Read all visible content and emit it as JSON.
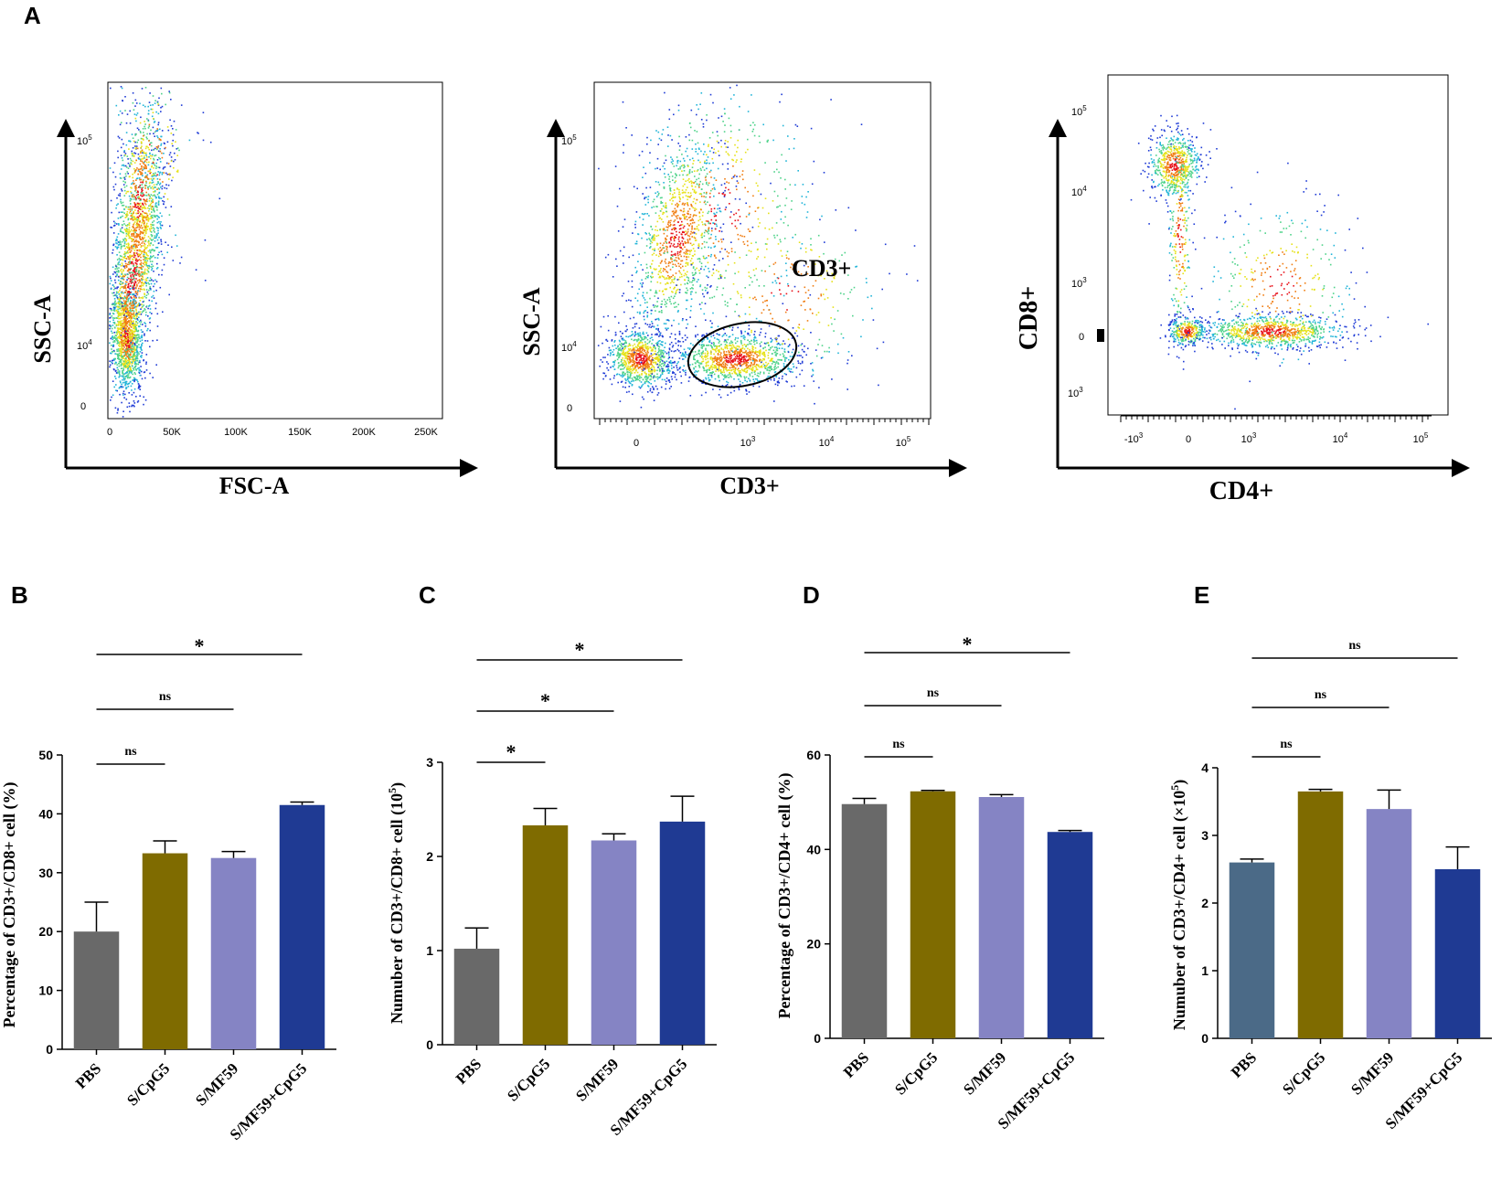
{
  "panels": {
    "A": "A",
    "B": "B",
    "C": "C",
    "D": "D",
    "E": "E"
  },
  "flow": [
    {
      "id": "fsc-ssc",
      "xlabel": "FSC-A",
      "ylabel": "SSC-A",
      "xticks": [
        "0",
        "50K",
        "100K",
        "150K",
        "200K",
        "250K"
      ],
      "yticks": [
        {
          "base": "10",
          "exp": "5"
        },
        {
          "base": "10",
          "exp": "4"
        },
        {
          "base": "0",
          "exp": ""
        }
      ]
    },
    {
      "id": "cd3-ssc",
      "xlabel": "CD3+",
      "ylabel": "SSC-A",
      "gate_label": "CD3+",
      "xticks": [
        {
          "base": "0",
          "exp": ""
        },
        {
          "base": "10",
          "exp": "3"
        },
        {
          "base": "10",
          "exp": "4"
        },
        {
          "base": "10",
          "exp": "5"
        }
      ],
      "yticks": [
        {
          "base": "10",
          "exp": "5"
        },
        {
          "base": "10",
          "exp": "4"
        },
        {
          "base": "0",
          "exp": ""
        }
      ]
    },
    {
      "id": "cd4-cd8",
      "xlabel": "CD4+",
      "ylabel": "CD8+",
      "xticks": [
        {
          "base": "-10",
          "exp": "3"
        },
        {
          "base": "0",
          "exp": ""
        },
        {
          "base": "10",
          "exp": "3"
        },
        {
          "base": "10",
          "exp": "4"
        },
        {
          "base": "10",
          "exp": "5"
        }
      ],
      "yticks": [
        {
          "base": "10",
          "exp": "5"
        },
        {
          "base": "10",
          "exp": "4"
        },
        {
          "base": "10",
          "exp": "3"
        },
        {
          "base": "0",
          "exp": ""
        },
        {
          "base": "10",
          "exp": "3"
        }
      ]
    }
  ],
  "chart_data": [
    {
      "type": "bar",
      "panel": "B",
      "ylabel": "Percentage of CD3+/CD8+ cell (%)",
      "ylim": [
        0,
        50
      ],
      "yticks": [
        0,
        10,
        20,
        30,
        40,
        50
      ],
      "categories": [
        "PBS",
        "S/CpG5",
        "S/MF59",
        "S/MF59+CpG5"
      ],
      "values": [
        20,
        33.3,
        32.5,
        41.5
      ],
      "errors": [
        5,
        2.1,
        1.1,
        0.5
      ],
      "colors": [
        "#696969",
        "#7f6b00",
        "#8584c4",
        "#1f3a93"
      ],
      "significance": [
        {
          "from": 0,
          "to": 1,
          "label": "ns"
        },
        {
          "from": 0,
          "to": 2,
          "label": "ns"
        },
        {
          "from": 0,
          "to": 3,
          "label": "*"
        }
      ]
    },
    {
      "type": "bar",
      "panel": "C",
      "ylabel": "Numuber of CD3+/CD8+ cell (10",
      "ylabel_sup": "5",
      "ylabel_end": ")",
      "ylim": [
        0,
        3
      ],
      "yticks": [
        0,
        1,
        2,
        3
      ],
      "categories": [
        "PBS",
        "S/CpG5",
        "S/MF59",
        "S/MF59+CpG5"
      ],
      "values": [
        1.02,
        2.33,
        2.17,
        2.37
      ],
      "errors": [
        0.22,
        0.18,
        0.07,
        0.27
      ],
      "colors": [
        "#696969",
        "#7f6b00",
        "#8584c4",
        "#1f3a93"
      ],
      "significance": [
        {
          "from": 0,
          "to": 1,
          "label": "*"
        },
        {
          "from": 0,
          "to": 2,
          "label": "*"
        },
        {
          "from": 0,
          "to": 3,
          "label": "*"
        }
      ]
    },
    {
      "type": "bar",
      "panel": "D",
      "ylabel": "Percentage of CD3+/CD4+ cell (%)",
      "ylim": [
        0,
        60
      ],
      "yticks": [
        0,
        20,
        40,
        60
      ],
      "categories": [
        "PBS",
        "S/CpG5",
        "S/MF59",
        "S/MF59+CpG5"
      ],
      "values": [
        49.6,
        52.3,
        51.1,
        43.7
      ],
      "errors": [
        1.2,
        0.2,
        0.5,
        0.3
      ],
      "colors": [
        "#696969",
        "#7f6b00",
        "#8584c4",
        "#1f3a93"
      ],
      "significance": [
        {
          "from": 0,
          "to": 1,
          "label": "ns"
        },
        {
          "from": 0,
          "to": 2,
          "label": "ns"
        },
        {
          "from": 0,
          "to": 3,
          "label": "*"
        }
      ]
    },
    {
      "type": "bar",
      "panel": "E",
      "ylabel": "Numuber of CD3+/CD4+ cell (×10",
      "ylabel_sup": "5",
      "ylabel_end": ")",
      "ylim": [
        0,
        4
      ],
      "yticks": [
        0,
        1,
        2,
        3,
        4
      ],
      "categories": [
        "PBS",
        "S/CpG5",
        "S/MF59",
        "S/MF59+CpG5"
      ],
      "values": [
        2.6,
        3.65,
        3.39,
        2.5
      ],
      "errors": [
        0.05,
        0.03,
        0.28,
        0.33
      ],
      "colors": [
        "#4b6a87",
        "#7f6b00",
        "#8584c4",
        "#1f3a93"
      ],
      "significance": [
        {
          "from": 0,
          "to": 1,
          "label": "ns"
        },
        {
          "from": 0,
          "to": 2,
          "label": "ns"
        },
        {
          "from": 0,
          "to": 3,
          "label": "ns"
        }
      ]
    }
  ]
}
